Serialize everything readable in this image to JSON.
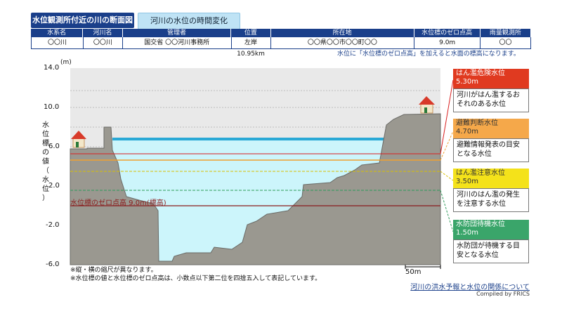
{
  "tabs": [
    {
      "label": "水位観測所付近の川の断面図"
    },
    {
      "label": "河川の水位の時間変化"
    }
  ],
  "table": {
    "headers": [
      "水系名",
      "河川名",
      "管理者",
      "位置",
      "所在地",
      "水位標のゼロ点高",
      "雨量観測所"
    ],
    "row": [
      "〇〇川",
      "〇〇川",
      "国交省 〇〇河川事務所",
      "左岸10.95km",
      "〇〇県〇〇市〇〇町〇〇",
      "9.0m",
      "〇〇"
    ]
  },
  "note_top": "水位に「水位標のゼロ点高」を加えると水面の標高になります。",
  "axis": {
    "unit": "(m)",
    "ylabel_chars": [
      "水",
      "位",
      "標",
      "の",
      "値",
      "（",
      "水",
      "位",
      "）"
    ],
    "ticks": [
      "14.0",
      "10.0",
      "6.0",
      "2.0",
      "-2.0",
      "-6.0"
    ]
  },
  "reference": {
    "label": "水位標のゼロ点高 9.0m(標高)"
  },
  "levels": [
    {
      "name": "はん濫危険水位",
      "value": "5.30m",
      "desc": "河川がはん濫するおそれのある水位",
      "color": "#e03a20",
      "text_color": "#ffffff"
    },
    {
      "name": "避難判断水位",
      "value": "4.70m",
      "desc": "避難情報発表の目安となる水位",
      "color": "#f5a84a",
      "text_color": "#333333"
    },
    {
      "name": "はん濫注意水位",
      "value": "3.50m",
      "desc": "河川のはん濫の発生を注意する水位",
      "color": "#f4e21a",
      "text_color": "#333333"
    },
    {
      "name": "水防団待機水位",
      "value": "1.50m",
      "desc": "水防団が待機する目安となる水位",
      "color": "#3aa56a",
      "text_color": "#ffffff"
    }
  ],
  "footnotes": [
    "※縦・横の縮尺が異なります。",
    "※水位標の値と水位標のゼロ点高は、小数点以下第二位を四捨五入して表記しています。"
  ],
  "scale_label": "50m",
  "link_text": "河川の洪水予報と水位の関係について",
  "credit": "Compiled by FRICS",
  "colors": {
    "accent": "#1a3f8a",
    "water": "#ccf5fb",
    "ground": "#9a9890"
  }
}
